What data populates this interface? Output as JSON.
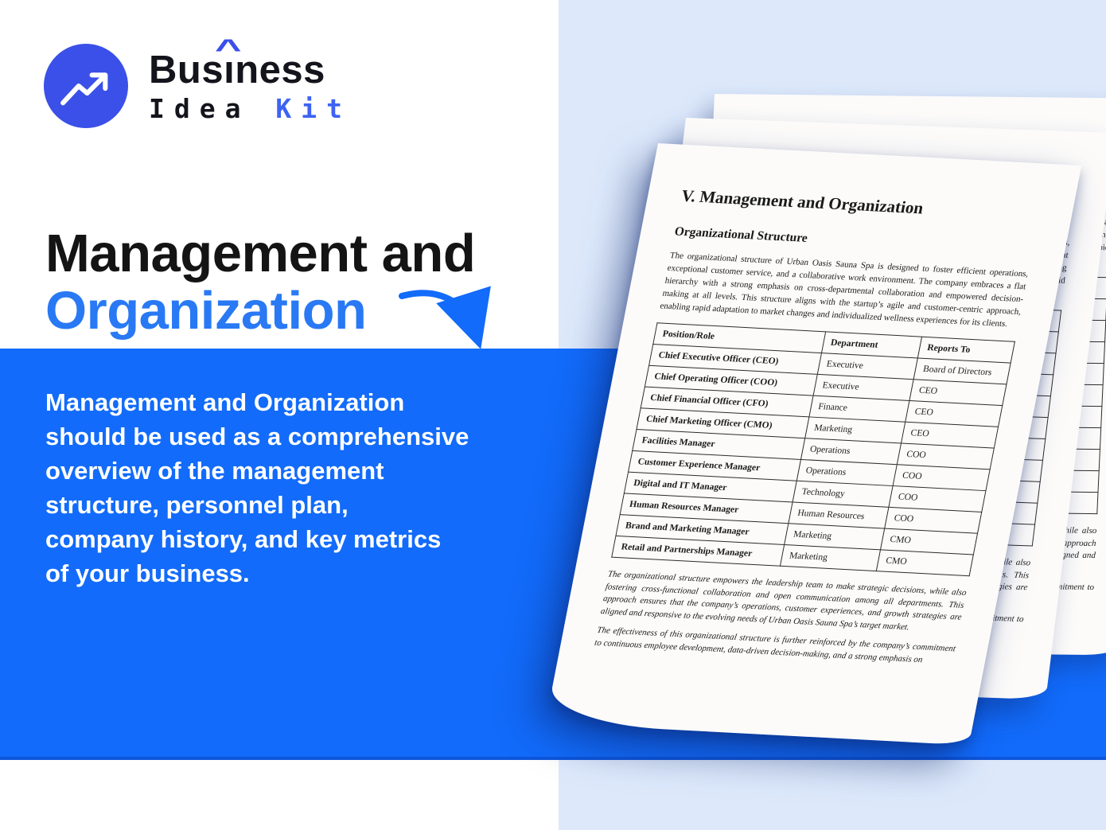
{
  "brand": {
    "word1_pre": "Bus",
    "word1_i": "ı",
    "caret": "^",
    "word1_post": "ness",
    "word2": "Idea",
    "word3": "Kit"
  },
  "hero": {
    "title_line1": "Management and",
    "title_line2": "Organization",
    "description_lines": [
      "Management and Organization",
      "should be used as a comprehensive",
      "overview of the management",
      "structure, personnel plan,",
      "company history, and key metrics",
      "of your business."
    ]
  },
  "document": {
    "title": "V. Management and Organization",
    "section_heading": "Organizational Structure",
    "intro_paragraph": "The organizational structure of Urban Oasis Sauna Spa is designed to foster efficient operations, exceptional customer service, and a collaborative work environment. The company embraces a flat hierarchy with a strong emphasis on cross-departmental collaboration and empowered decision-making at all levels. This structure aligns with the startup’s agile and customer-centric approach, enabling rapid adaptation to market changes and individualized wellness experiences for its clients.",
    "table": {
      "headers": [
        "Position/Role",
        "Department",
        "Reports To"
      ],
      "rows": [
        [
          "Chief Executive Officer (CEO)",
          "Executive",
          "Board of Directors"
        ],
        [
          "Chief Operating Officer (COO)",
          "Executive",
          "CEO"
        ],
        [
          "Chief Financial Officer (CFO)",
          "Finance",
          "CEO"
        ],
        [
          "Chief Marketing Officer (CMO)",
          "Marketing",
          "CEO"
        ],
        [
          "Facilities Manager",
          "Operations",
          "COO"
        ],
        [
          "Customer Experience Manager",
          "Operations",
          "COO"
        ],
        [
          "Digital and IT Manager",
          "Technology",
          "COO"
        ],
        [
          "Human Resources Manager",
          "Human Resources",
          "COO"
        ],
        [
          "Brand and Marketing Manager",
          "Marketing",
          "CMO"
        ],
        [
          "Retail and Partnerships Manager",
          "Marketing",
          "CMO"
        ]
      ]
    },
    "closing_paragraphs": [
      "The organizational structure empowers the leadership team to make strategic decisions, while also fostering cross-functional collaboration and open communication among all departments. This approach ensures that the company’s operations, customer experiences, and growth strategies are aligned and responsive to the evolving needs of Urban Oasis Sauna Spa’s target market.",
      "The effectiveness of this organizational structure is further reinforced by the company’s commitment to continuous employee development, data-driven decision-making, and a strong emphasis on"
    ]
  },
  "colors": {
    "band_blue": "#126bfa",
    "heading_blue": "#2979f4",
    "logo_indigo": "#3a50e8",
    "kit_blue": "#3d63f2",
    "light_panel": "#dde9fb",
    "page_white": "#fcfbfa",
    "text_black": "#141414"
  }
}
